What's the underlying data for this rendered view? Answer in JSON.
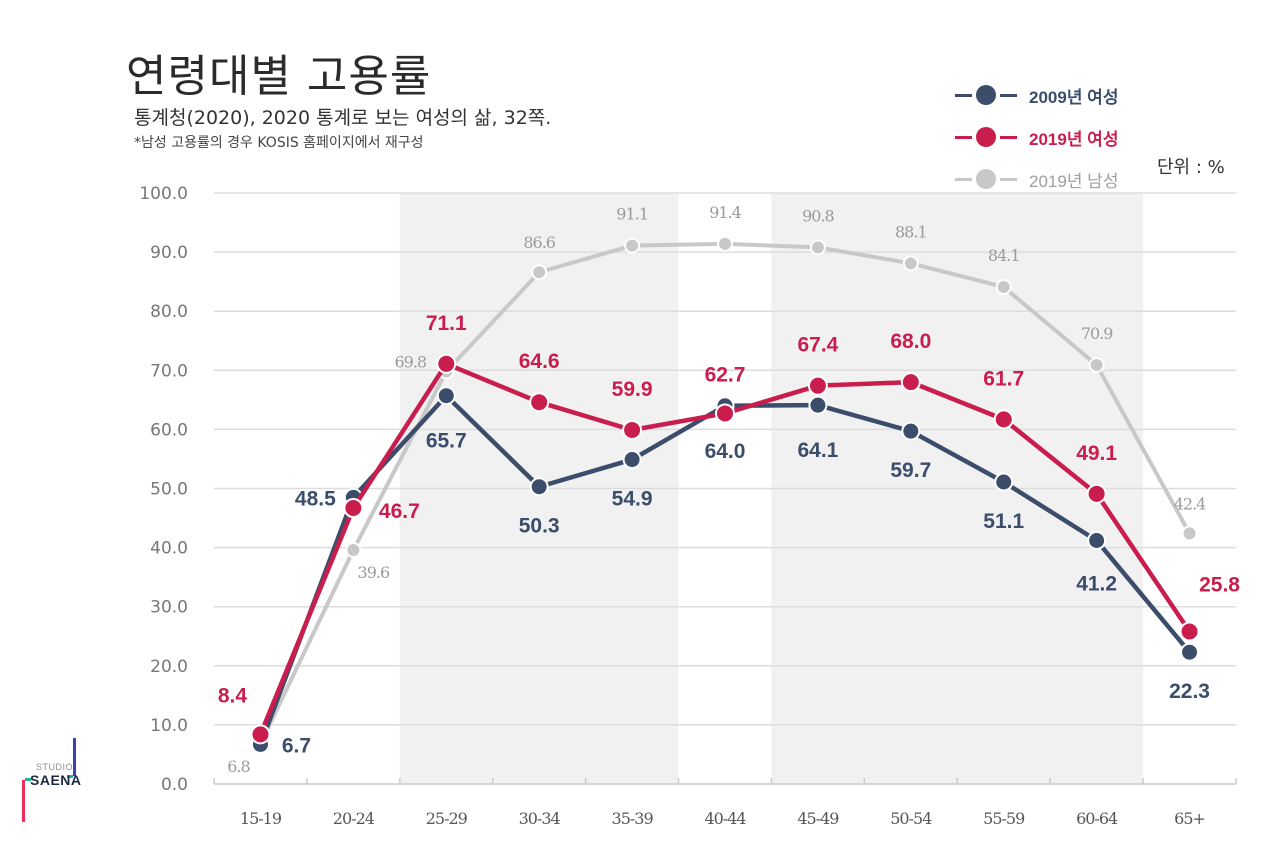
{
  "header": {
    "title": "연령대별 고용률",
    "subtitle": "통계청(2020), 2020 통계로 보는 여성의 삶, 32쪽.",
    "note": "*남성 고용률의 경우 KOSIS 홈페이지에서 재구성",
    "unit": "단위 : %"
  },
  "logo": {
    "top": "STUDIO",
    "bottom": "SAENA"
  },
  "colors": {
    "women_2009": "#3b4d6b",
    "women_2019": "#c91d4e",
    "men_2019": "#c8c8c8",
    "band": "#f1f1f1",
    "grid": "#dddddd",
    "axis_text": "#777777"
  },
  "chart_data": {
    "type": "line",
    "title": "연령대별 고용률",
    "xlabel": "",
    "ylabel": "",
    "unit": "%",
    "categories": [
      "15-19",
      "20-24",
      "25-29",
      "30-34",
      "35-39",
      "40-44",
      "45-49",
      "50-54",
      "55-59",
      "60-64",
      "65+"
    ],
    "ylim": [
      0,
      100
    ],
    "yticks": [
      0,
      10,
      20,
      30,
      40,
      50,
      60,
      70,
      80,
      90,
      100
    ],
    "ytick_labels": [
      "0.0",
      "10.0",
      "20.0",
      "30.0",
      "40.0",
      "50.0",
      "60.0",
      "70.0",
      "80.0",
      "90.0",
      "100.0"
    ],
    "grid": true,
    "legend_position": "top-right",
    "shaded_category_ranges": [
      [
        "25-29",
        "35-39"
      ],
      [
        "45-49",
        "60-64"
      ]
    ],
    "series": [
      {
        "name": "2019년 남성",
        "color": "#c8c8c8",
        "values": [
          6.8,
          39.6,
          69.8,
          86.6,
          91.1,
          91.4,
          90.8,
          88.1,
          84.1,
          70.9,
          42.4
        ],
        "labels": [
          "6.8",
          "39.6",
          "69.8",
          "86.6",
          "91.1",
          "91.4",
          "90.8",
          "88.1",
          "84.1",
          "70.9",
          "42.4"
        ]
      },
      {
        "name": "2009년 여성",
        "color": "#3b4d6b",
        "values": [
          6.7,
          48.5,
          65.7,
          50.3,
          54.9,
          64.0,
          64.1,
          59.7,
          51.1,
          41.2,
          22.3
        ],
        "labels": [
          "6.7",
          "48.5",
          "65.7",
          "50.3",
          "54.9",
          "64.0",
          "64.1",
          "59.7",
          "51.1",
          "41.2",
          "22.3"
        ]
      },
      {
        "name": "2019년 여성",
        "color": "#c91d4e",
        "values": [
          8.4,
          46.7,
          71.1,
          64.6,
          59.9,
          62.7,
          67.4,
          68.0,
          61.7,
          49.1,
          25.8
        ],
        "labels": [
          "8.4",
          "46.7",
          "71.1",
          "64.6",
          "59.9",
          "62.7",
          "67.4",
          "68.0",
          "61.7",
          "49.1",
          "25.8"
        ]
      }
    ]
  },
  "legend": {
    "items": [
      {
        "label": "2009년 여성",
        "color": "#3b4d6b",
        "bold": true
      },
      {
        "label": "2019년 여성",
        "color": "#c91d4e",
        "bold": true
      },
      {
        "label": "2019년 남성",
        "color": "#c0c0c0",
        "bold": false
      }
    ]
  }
}
